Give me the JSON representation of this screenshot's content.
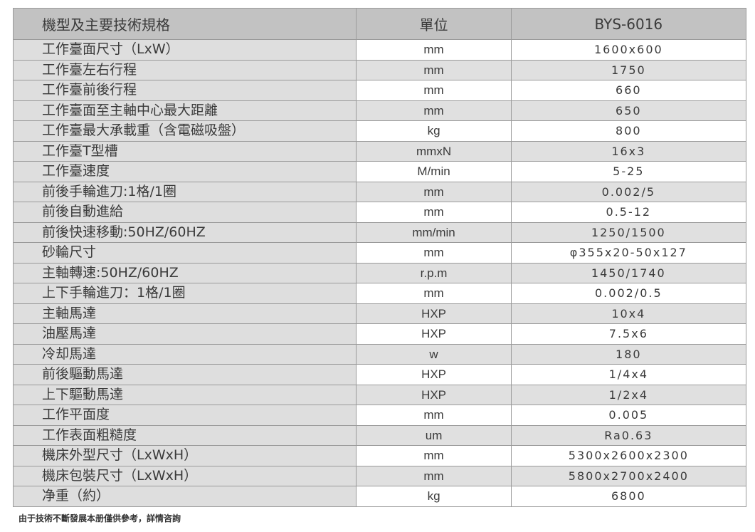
{
  "table": {
    "headers": [
      "機型及主要技術規格",
      "單位",
      "BYS-6016"
    ],
    "rows": [
      [
        "工作臺面尺寸（LxW）",
        "mm",
        "1600x600"
      ],
      [
        "工作臺左右行程",
        "mm",
        "1750"
      ],
      [
        "工作臺前後行程",
        "mm",
        "660"
      ],
      [
        "工作臺面至主軸中心最大距離",
        "mm",
        "650"
      ],
      [
        "工作臺最大承載重（含電磁吸盤）",
        "kg",
        "800"
      ],
      [
        "工作臺T型槽",
        "mmxN",
        "16x3"
      ],
      [
        "工作臺速度",
        "M/min",
        "5-25"
      ],
      [
        "前後手輪進刀:1格/1圈",
        "mm",
        "0.002/5"
      ],
      [
        "前後自動進給",
        "mm",
        "0.5-12"
      ],
      [
        "前後快速移動:50HZ/60HZ",
        "mm/min",
        "1250/1500"
      ],
      [
        "砂輪尺寸",
        "mm",
        "φ355x20-50x127"
      ],
      [
        "主軸轉速:50HZ/60HZ",
        "r.p.m",
        "1450/1740"
      ],
      [
        "上下手輪進刀：1格/1圈",
        "mm",
        "0.002/0.5"
      ],
      [
        "主軸馬達",
        "HXP",
        "10x4"
      ],
      [
        "油壓馬達",
        "HXP",
        "7.5x6"
      ],
      [
        "冷却馬達",
        "w",
        "180"
      ],
      [
        "前後驅動馬達",
        "HXP",
        "1/4x4"
      ],
      [
        "上下驅動馬達",
        "HXP",
        "1/2x4"
      ],
      [
        "工作平面度",
        "mm",
        "0.005"
      ],
      [
        "工作表面粗糙度",
        "um",
        "Ra0.63"
      ],
      [
        "機床外型尺寸（LxWxH）",
        "mm",
        "5300x2600x2300"
      ],
      [
        "機床包裝尺寸（LxWxH）",
        "mm",
        "5800x2700x2400"
      ],
      [
        "净重（約）",
        "kg",
        "6800"
      ]
    ]
  },
  "footer_note": "由于技術不斷發展本册僅供參考，詳情咨詢",
  "colors": {
    "header_bg": "#c2c2c2",
    "label_bg": "#dedede",
    "alt_row_bg": "#e0e0e0",
    "text": "#3a3a3a"
  }
}
